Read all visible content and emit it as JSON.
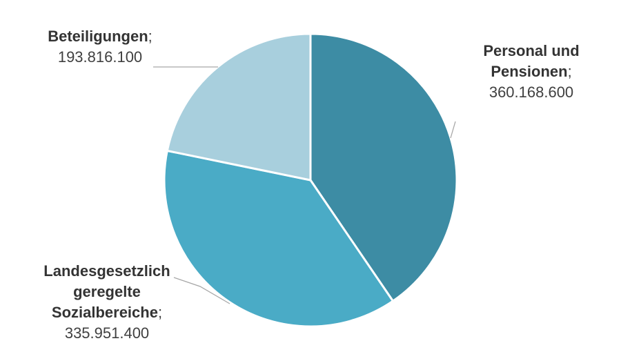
{
  "chart_data": {
    "type": "pie",
    "title": "",
    "slices": [
      {
        "name_lines": [
          "Personal und",
          "Pensionen"
        ],
        "value": 360168600,
        "value_label": "360.168.600",
        "color": "#3d8ca4"
      },
      {
        "name_lines": [
          "Landesgesetzlich",
          "geregelte",
          "Sozialbereiche"
        ],
        "value": 335951400,
        "value_label": "335.951.400",
        "color": "#4aabc6"
      },
      {
        "name_lines": [
          "Beteiligungen"
        ],
        "value": 193816100,
        "value_label": "193.816.100",
        "color": "#a8cfdd"
      }
    ],
    "separator": ";",
    "legend": "none",
    "start_angle_deg": 0,
    "direction": "clockwise",
    "slice_border_color": "#ffffff",
    "leader_line_color": "#a6a6a6"
  }
}
